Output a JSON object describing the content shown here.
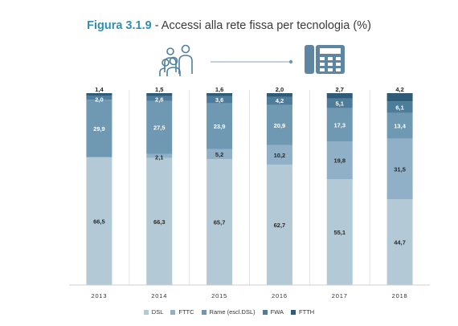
{
  "title": {
    "figure_label": "Figura 3.1.9",
    "separator": " - ",
    "text": "Accessi alla rete fissa per tecnologia (%)"
  },
  "icons": [
    "people-group-icon",
    "telephone-icon"
  ],
  "colors": {
    "DSL": "#b4c9d6",
    "FTTC": "#8fb0c6",
    "Rame (escl.DSL)": "#6f98b2",
    "FWA": "#4d7d9b",
    "FTTH": "#2e5b78",
    "title_accent": "#2f8fb5"
  },
  "chart_data": {
    "type": "bar",
    "stacked": true,
    "title": "Accessi alla rete fissa per tecnologia (%)",
    "categories": [
      "2013",
      "2014",
      "2015",
      "2016",
      "2017",
      "2018"
    ],
    "series": [
      {
        "name": "DSL",
        "values": [
          66.5,
          66.3,
          65.7,
          62.7,
          55.1,
          44.7
        ],
        "labels": [
          "66,5",
          "66,3",
          "65,7",
          "62,7",
          "55,1",
          "44,7"
        ]
      },
      {
        "name": "FTTC",
        "values": [
          0,
          2.1,
          5.2,
          10.2,
          19.8,
          31.5
        ],
        "labels": [
          "",
          "2,1",
          "5,2",
          "10,2",
          "19,8",
          "31,5"
        ]
      },
      {
        "name": "Rame (escl.DSL)",
        "values": [
          29.9,
          27.5,
          23.9,
          20.9,
          17.3,
          13.4
        ],
        "labels": [
          "29,9",
          "27,5",
          "23,9",
          "20,9",
          "17,3",
          "13,4"
        ]
      },
      {
        "name": "FWA",
        "values": [
          2.0,
          2.6,
          3.6,
          4.2,
          5.1,
          6.1
        ],
        "labels": [
          "2,0",
          "2,6",
          "3,6",
          "4,2",
          "5,1",
          "6,1"
        ]
      },
      {
        "name": "FTTH",
        "values": [
          1.4,
          1.5,
          1.6,
          2.0,
          2.7,
          4.2
        ],
        "labels": [
          "1,4",
          "1,5",
          "1,6",
          "2,0",
          "2,7",
          "4,2"
        ]
      }
    ],
    "ylim": [
      0,
      100
    ],
    "grid": false,
    "legend_position": "bottom"
  }
}
